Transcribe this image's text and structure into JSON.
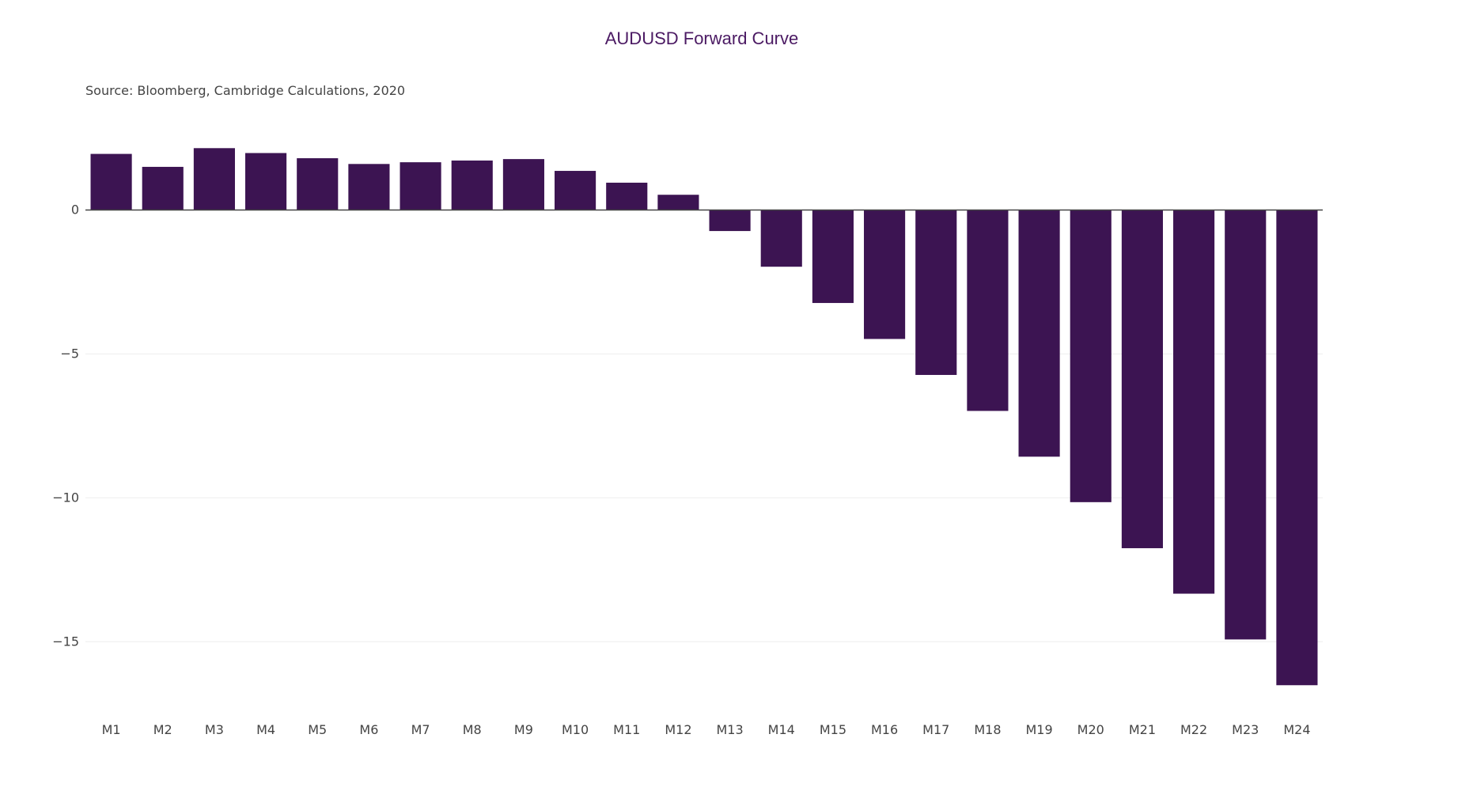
{
  "colors": {
    "bar": "#3c1452",
    "title": "#4b1a63",
    "text": "#444444",
    "grid": "#eeeeee",
    "zeroline": "#444444"
  },
  "chart_data": {
    "type": "bar",
    "title": "AUDUSD Forward Curve",
    "subtitle": "Source: Bloomberg, Cambridge Calculations, 2020",
    "xlabel": "",
    "ylabel": "",
    "categories": [
      "M1",
      "M2",
      "M3",
      "M4",
      "M5",
      "M6",
      "M7",
      "M8",
      "M9",
      "M10",
      "M11",
      "M12",
      "M13",
      "M14",
      "M15",
      "M16",
      "M17",
      "M18",
      "M19",
      "M20",
      "M21",
      "M22",
      "M23",
      "M24"
    ],
    "values": [
      1.95,
      1.5,
      2.15,
      1.98,
      1.8,
      1.6,
      1.66,
      1.72,
      1.77,
      1.36,
      0.95,
      0.53,
      -0.73,
      -1.97,
      -3.23,
      -4.48,
      -5.73,
      -6.98,
      -8.57,
      -10.15,
      -11.75,
      -13.33,
      -14.92,
      -16.51
    ],
    "ylim": [
      -17.3,
      2.9
    ],
    "yticks": [
      0,
      -5,
      -10,
      -15
    ],
    "ytick_labels": [
      "0",
      "−5",
      "−10",
      "−15"
    ],
    "grid": true,
    "legend": "none"
  }
}
